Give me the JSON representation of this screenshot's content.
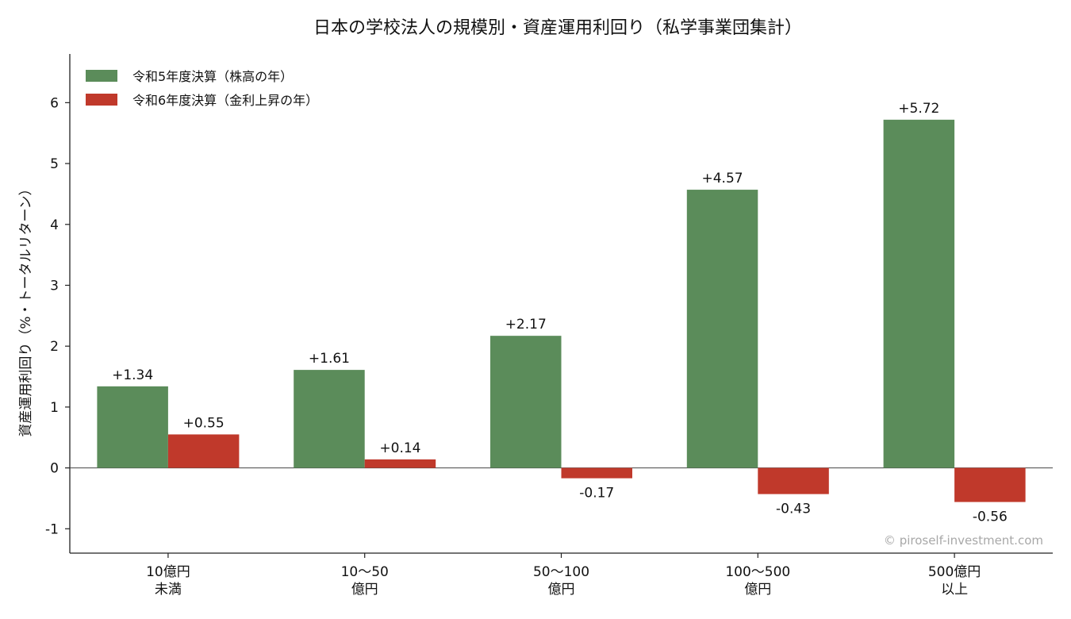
{
  "chart_data": {
    "type": "bar",
    "title": "日本の学校法人の規模別・資産運用利回り（私学事業団集計）",
    "ylabel": "資産運用利回り（%・トータルリターン）",
    "xlabel": "",
    "ylim": [
      -1.4,
      6.8
    ],
    "yticks": [
      -1,
      0,
      1,
      2,
      3,
      4,
      5,
      6
    ],
    "yticklabels": [
      "-1",
      "0",
      "1",
      "2",
      "3",
      "4",
      "5",
      "6"
    ],
    "categories": [
      [
        "10億円",
        "未満"
      ],
      [
        "10〜50",
        "億円"
      ],
      [
        "50〜100",
        "億円"
      ],
      [
        "100〜500",
        "億円"
      ],
      [
        "500億円",
        "以上"
      ]
    ],
    "series": [
      {
        "name": "令和5年度決算（株高の年）",
        "color": "#5b8c5a",
        "values": [
          1.34,
          1.61,
          2.17,
          4.57,
          5.72
        ],
        "labels": [
          "+1.34",
          "+1.61",
          "+2.17",
          "+4.57",
          "+5.72"
        ]
      },
      {
        "name": "令和6年度決算（金利上昇の年）",
        "color": "#c0392b",
        "values": [
          0.55,
          0.14,
          -0.17,
          -0.43,
          -0.56
        ],
        "labels": [
          "+0.55",
          "+0.14",
          "-0.17",
          "-0.43",
          "-0.56"
        ]
      }
    ],
    "legend_position": "top-left",
    "grid": false,
    "zero_line": true
  },
  "watermark": "© piroself-investment.com"
}
